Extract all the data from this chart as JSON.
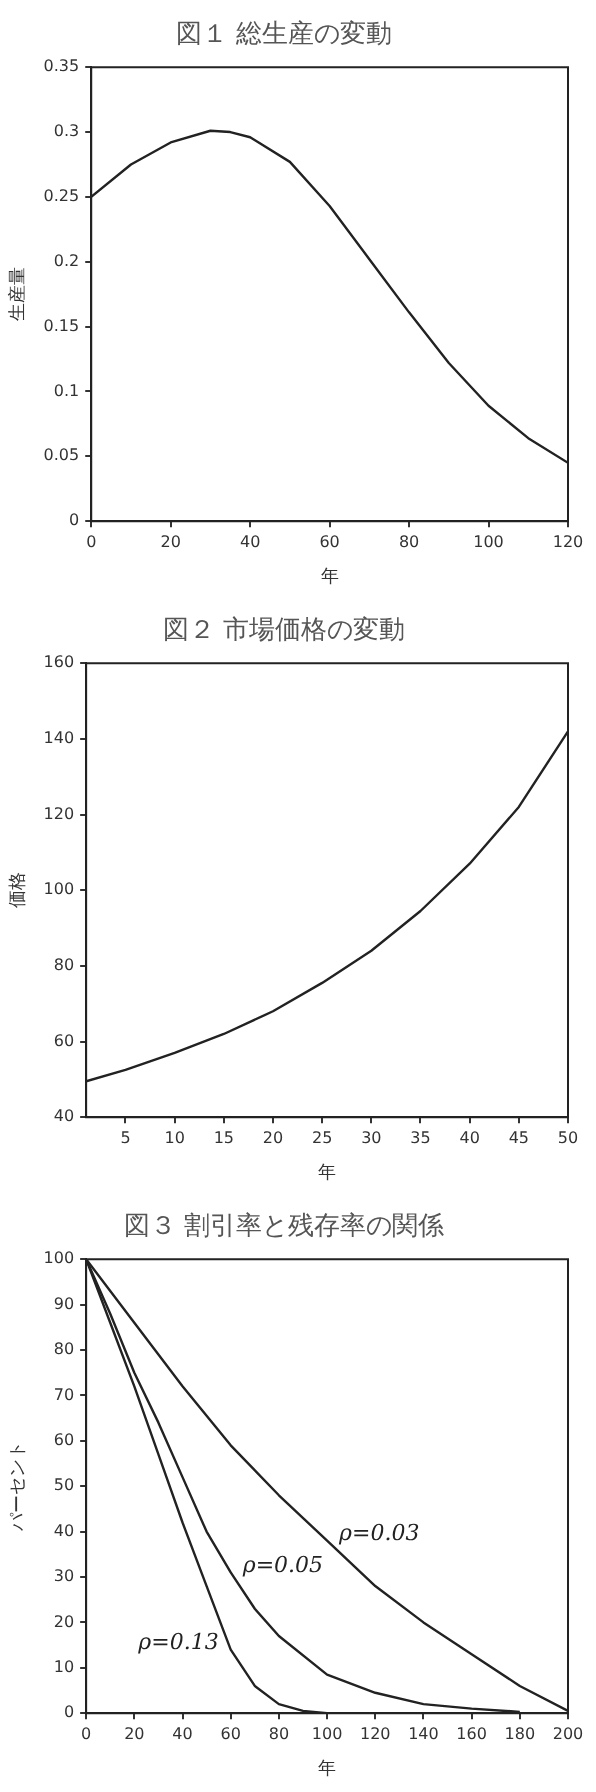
{
  "chart_data": [
    {
      "type": "line",
      "title": "図１ 総生産の変動",
      "xlabel": "年",
      "ylabel": "生産量",
      "xlim": [
        0,
        120
      ],
      "xticks": [
        0,
        20,
        40,
        60,
        80,
        100,
        120
      ],
      "ylim": [
        0,
        0.35
      ],
      "yticks": [
        0,
        0.05,
        0.1,
        0.15,
        0.2,
        0.25,
        0.3,
        0.35
      ],
      "grid": false,
      "legend": false,
      "marker": "none",
      "line_style": "solid",
      "series": [
        {
          "color": "#222222",
          "x": [
            0,
            10,
            20,
            30,
            35,
            40,
            50,
            60,
            70,
            80,
            90,
            100,
            110,
            120
          ],
          "values": [
            0.25,
            0.275,
            0.292,
            0.301,
            0.3,
            0.296,
            0.277,
            0.243,
            0.202,
            0.161,
            0.122,
            0.089,
            0.064,
            0.045
          ]
        }
      ]
    },
    {
      "type": "line",
      "title": "図２ 市場価格の変動",
      "xlabel": "年",
      "ylabel": "価格",
      "xlim": [
        1,
        50
      ],
      "xticks": [
        5,
        10,
        15,
        20,
        25,
        30,
        35,
        40,
        45,
        50
      ],
      "ylim": [
        40,
        160
      ],
      "yticks": [
        40,
        60,
        80,
        100,
        120,
        140,
        160
      ],
      "grid": false,
      "legend": false,
      "marker": "none",
      "line_style": "solid",
      "series": [
        {
          "color": "#222222",
          "x": [
            1,
            5,
            10,
            15,
            20,
            25,
            30,
            35,
            40,
            45,
            50
          ],
          "values": [
            49.5,
            52.5,
            57,
            62,
            68,
            75.5,
            84,
            94.5,
            107,
            122,
            142
          ]
        }
      ]
    },
    {
      "type": "line",
      "title": "図３ 割引率と残存率の関係",
      "xlabel": "年",
      "ylabel": "パーセント",
      "xlim": [
        0,
        200
      ],
      "xticks": [
        0,
        20,
        40,
        60,
        80,
        100,
        120,
        140,
        160,
        180,
        200
      ],
      "ylim": [
        0,
        100
      ],
      "yticks": [
        0,
        10,
        20,
        30,
        40,
        50,
        60,
        70,
        80,
        90,
        100
      ],
      "grid": false,
      "legend": false,
      "marker": "none",
      "line_style": "solid",
      "series": [
        {
          "name": "ρ=0.03",
          "color": "#222222",
          "x": [
            0,
            20,
            40,
            60,
            80,
            100,
            120,
            140,
            160,
            180,
            200
          ],
          "values": [
            100,
            86,
            72,
            59,
            48,
            38,
            28,
            20,
            13,
            6,
            0.5
          ]
        },
        {
          "name": "ρ=0.05",
          "color": "#222222",
          "x": [
            0,
            10,
            20,
            30,
            40,
            50,
            60,
            70,
            80,
            100,
            120,
            140,
            160,
            180
          ],
          "values": [
            100,
            88,
            75,
            64,
            52,
            40,
            31,
            23,
            17,
            8.5,
            4.5,
            2,
            1,
            0.3
          ]
        },
        {
          "name": "ρ=0.13",
          "color": "#222222",
          "x": [
            0,
            10,
            20,
            30,
            40,
            50,
            60,
            70,
            80,
            90,
            100,
            120
          ],
          "values": [
            100,
            86,
            72,
            57,
            42,
            28,
            14,
            6,
            2,
            0.5,
            0,
            0
          ]
        }
      ]
    }
  ]
}
